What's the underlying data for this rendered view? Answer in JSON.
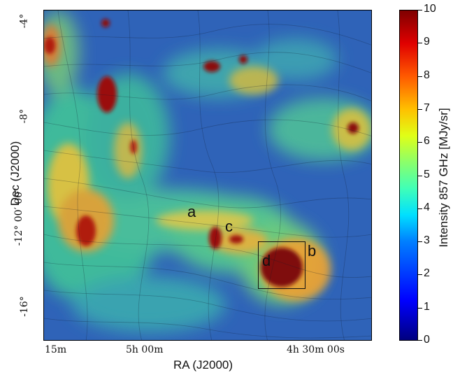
{
  "axes": {
    "xlabel": "RA (J2000)",
    "ylabel": "Dec (J2000)",
    "xticks": [
      "15m",
      "5h 00m",
      "4h 30m 00s"
    ],
    "yticks": [
      "-4°",
      "-8°",
      "-12° 00′ 00″",
      "-16°"
    ]
  },
  "colorbar": {
    "title": "Intensity 857 GHz [MJy/sr]",
    "ticks": [
      "0",
      "1",
      "2",
      "3",
      "4",
      "5",
      "6",
      "7",
      "8",
      "9",
      "10"
    ]
  },
  "annotations": {
    "a": "a",
    "b": "b",
    "c": "c",
    "d": "d"
  }
}
